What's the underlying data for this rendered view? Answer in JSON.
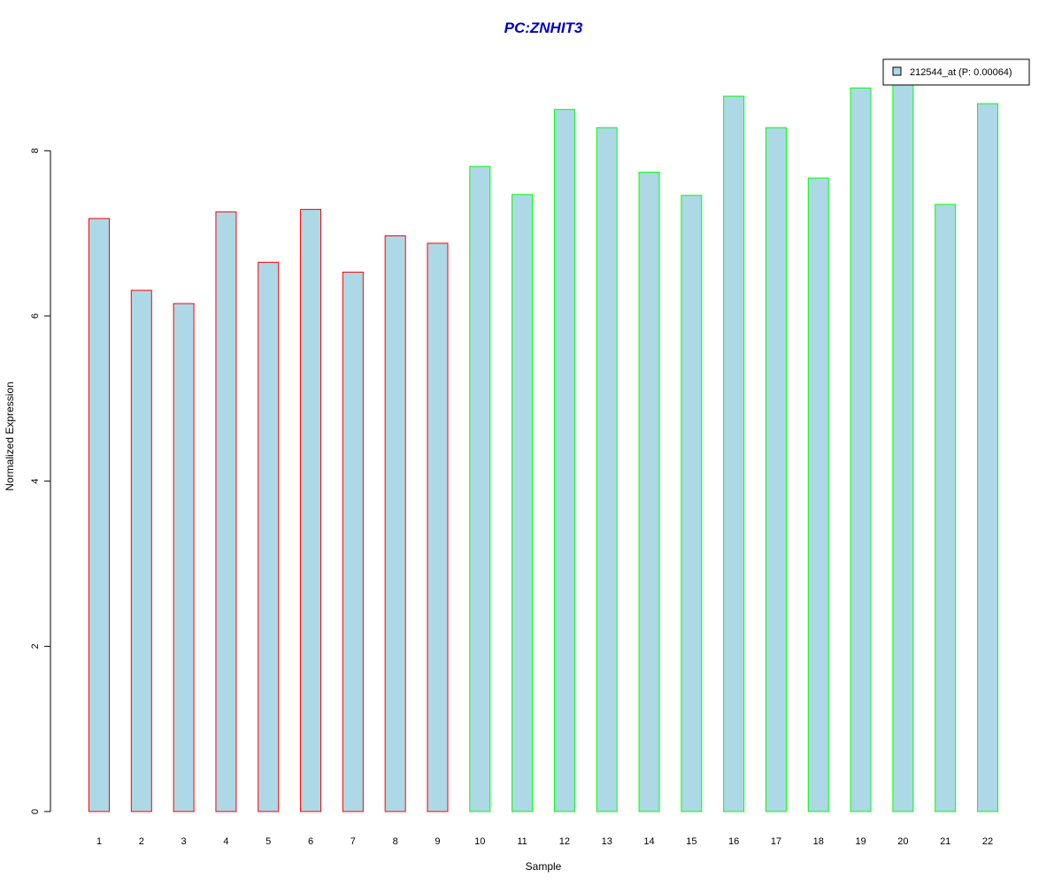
{
  "chart_data": {
    "type": "bar",
    "title": "PC:ZNHIT3",
    "xlabel": "Sample",
    "ylabel": "Normalized Expression",
    "categories": [
      "1",
      "2",
      "3",
      "4",
      "5",
      "6",
      "7",
      "8",
      "9",
      "10",
      "11",
      "12",
      "13",
      "14",
      "15",
      "16",
      "17",
      "18",
      "19",
      "20",
      "21",
      "22"
    ],
    "values": [
      7.18,
      6.31,
      6.15,
      7.26,
      6.65,
      7.29,
      6.53,
      6.97,
      6.88,
      7.81,
      7.47,
      8.5,
      8.28,
      7.74,
      7.46,
      8.66,
      8.28,
      7.67,
      8.76,
      8.89,
      7.35,
      8.57
    ],
    "groups": [
      "red",
      "red",
      "red",
      "red",
      "red",
      "red",
      "red",
      "red",
      "red",
      "green",
      "green",
      "green",
      "green",
      "green",
      "green",
      "green",
      "green",
      "green",
      "green",
      "green",
      "green",
      "green"
    ],
    "yticks": [
      0,
      2,
      4,
      6,
      8
    ],
    "ylim": [
      0,
      9.3
    ],
    "grid": false,
    "legend": {
      "placement": "top-right",
      "entries": [
        {
          "name": "212544_at (P: 0.00064)"
        }
      ]
    },
    "colors": {
      "bar_fill": "#ADD8E6",
      "group_red": "#FF0000",
      "group_green": "#00FF00",
      "title": "#0000CC"
    }
  }
}
